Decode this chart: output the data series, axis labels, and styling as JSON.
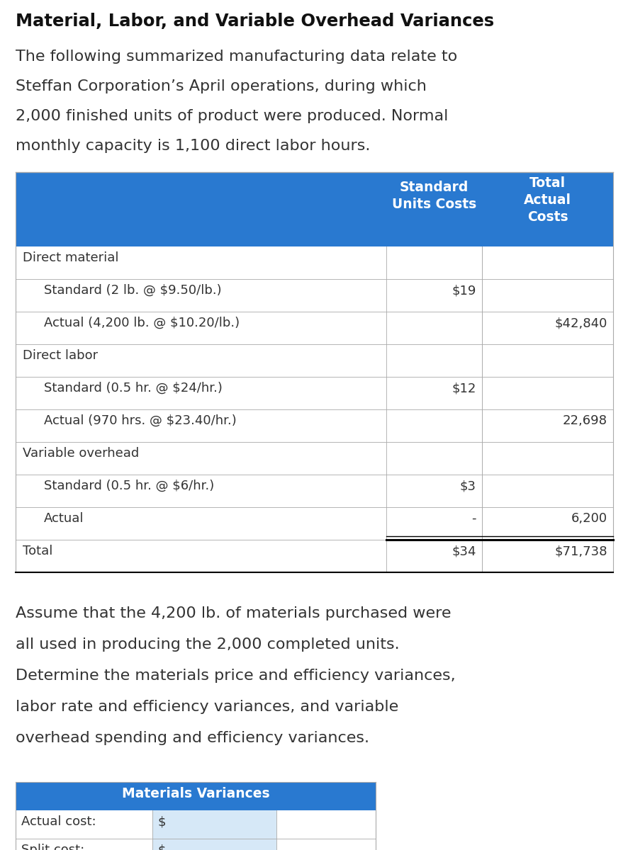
{
  "title": "Material, Labor, and Variable Overhead Variances",
  "intro_lines": [
    "The following summarized manufacturing data relate to",
    "Steffan Corporation’s April operations, during which",
    "2,000 finished units of product were produced. Normal",
    "monthly capacity is 1,100 direct labor hours."
  ],
  "header_col2": "Standard\nUnits Costs",
  "header_col3": "Total\nActual\nCosts",
  "table_rows": [
    {
      "label": "Direct material",
      "indent": false,
      "col2": "",
      "col3": ""
    },
    {
      "label": "Standard (2 lb. @ $9.50/lb.)",
      "indent": true,
      "col2": "$19",
      "col3": ""
    },
    {
      "label": "Actual (4,200 lb. @ $10.20/lb.)",
      "indent": true,
      "col2": "",
      "col3": "$42,840"
    },
    {
      "label": "Direct labor",
      "indent": false,
      "col2": "",
      "col3": ""
    },
    {
      "label": "Standard (0.5 hr. @ $24/hr.)",
      "indent": true,
      "col2": "$12",
      "col3": ""
    },
    {
      "label": "Actual (970 hrs. @ $23.40/hr.)",
      "indent": true,
      "col2": "",
      "col3": "22,698"
    },
    {
      "label": "Variable overhead",
      "indent": false,
      "col2": "",
      "col3": ""
    },
    {
      "label": "Standard (0.5 hr. @ $6/hr.)",
      "indent": true,
      "col2": "$3",
      "col3": ""
    },
    {
      "label": "Actual",
      "indent": true,
      "col2": "-",
      "col3": "6,200"
    },
    {
      "label": "Total",
      "indent": false,
      "col2": "$34",
      "col3": "$71,738",
      "total": true
    }
  ],
  "bottom_lines": [
    "Assume that the 4,200 lb. of materials purchased were",
    "all used in producing the 2,000 completed units.",
    "Determine the materials price and efficiency variances,",
    "labor rate and efficiency variances, and variable",
    "overhead spending and efficiency variances."
  ],
  "materials_header": "Materials Variances",
  "materials_rows": [
    {
      "label": "Actual cost:",
      "col2": "$"
    },
    {
      "label": "Split cost:",
      "col2": "$"
    }
  ],
  "blue_color": "#2979D0",
  "white": "#FFFFFF",
  "light_blue_cell": "#D6E8F7",
  "border_color": "#AAAAAA",
  "black": "#000000",
  "bg_color": "#FFFFFF",
  "text_color": "#333333",
  "title_color": "#111111"
}
